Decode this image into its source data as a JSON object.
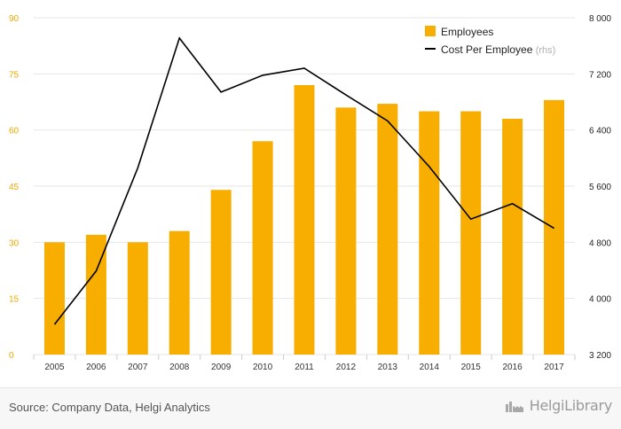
{
  "chart_data": {
    "type": "bar+line",
    "categories": [
      "2005",
      "2006",
      "2007",
      "2008",
      "2009",
      "2010",
      "2011",
      "2012",
      "2013",
      "2014",
      "2015",
      "2016",
      "2017"
    ],
    "series": [
      {
        "name": "Employees",
        "type": "bar",
        "axis": "left",
        "values": [
          30,
          32,
          30,
          33,
          44,
          57,
          72,
          66,
          67,
          65,
          65,
          63,
          68
        ]
      },
      {
        "name": "Cost Per Employee",
        "type": "line",
        "axis": "right",
        "values": [
          3630,
          4390,
          5860,
          7710,
          6940,
          7180,
          7280,
          6900,
          6530,
          5880,
          5130,
          5350,
          5000
        ]
      }
    ],
    "left_axis": {
      "ticks": [
        "0",
        "15",
        "30",
        "45",
        "60",
        "75",
        "90"
      ],
      "min": 0,
      "max": 90
    },
    "right_axis": {
      "ticks": [
        "3 200",
        "4 000",
        "4 800",
        "5 600",
        "6 400",
        "7 200",
        "8 000"
      ],
      "min": 3200,
      "max": 8000
    },
    "legend": {
      "placement": "top-right",
      "bar_label": "Employees",
      "line_label": "Cost Per Employee",
      "line_suffix": "(rhs)"
    },
    "grid": true,
    "colors": {
      "bar": "#f8ae00",
      "line": "#000000",
      "left_axis": "#f0a800",
      "grid": "#e6e6e6"
    }
  },
  "footer": {
    "source": "Source: Company Data, Helgi Analytics",
    "brand": "HelgiLibrary"
  }
}
